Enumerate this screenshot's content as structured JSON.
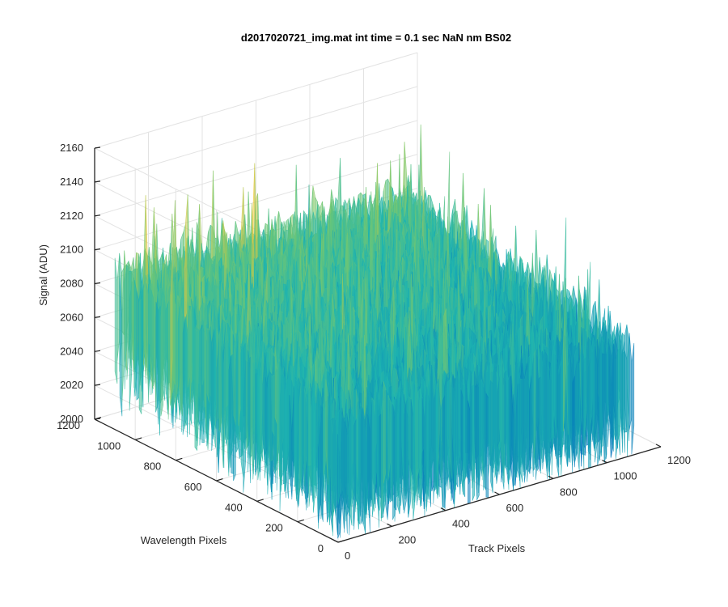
{
  "chart_data": {
    "type": "surface",
    "title": "d2017020721_img.mat int time = 0.1 sec  NaN nm BS02",
    "xlabel": "Track Pixels",
    "ylabel": "Wavelength Pixels",
    "zlabel": "Signal (ADU)",
    "x_ticks": [
      "0",
      "200",
      "400",
      "600",
      "800",
      "1000",
      "1200"
    ],
    "y_ticks": [
      "0",
      "200",
      "400",
      "600",
      "800",
      "1000",
      "1200"
    ],
    "z_ticks": [
      "2000",
      "2020",
      "2040",
      "2060",
      "2080",
      "2100",
      "2120",
      "2140",
      "2160"
    ],
    "xlim": [
      0,
      1200
    ],
    "ylim": [
      0,
      1200
    ],
    "zlim": [
      2000,
      2160
    ],
    "grid": true,
    "colormap": "parula",
    "colors": {
      "low": "#0072bd",
      "mid": "#1fb5b0",
      "high": "#f0c93a",
      "axis": "#262626",
      "grid": "#e3e3e3"
    },
    "surface_estimate": {
      "x_extent": [
        0,
        1100
      ],
      "y_extent": [
        0,
        1100
      ],
      "mean_signal_at_y0": 2072,
      "mean_signal_at_y1100": 2095,
      "noise_peak_to_peak": 60,
      "spike_max": 2160,
      "dip_min": 2000
    }
  }
}
